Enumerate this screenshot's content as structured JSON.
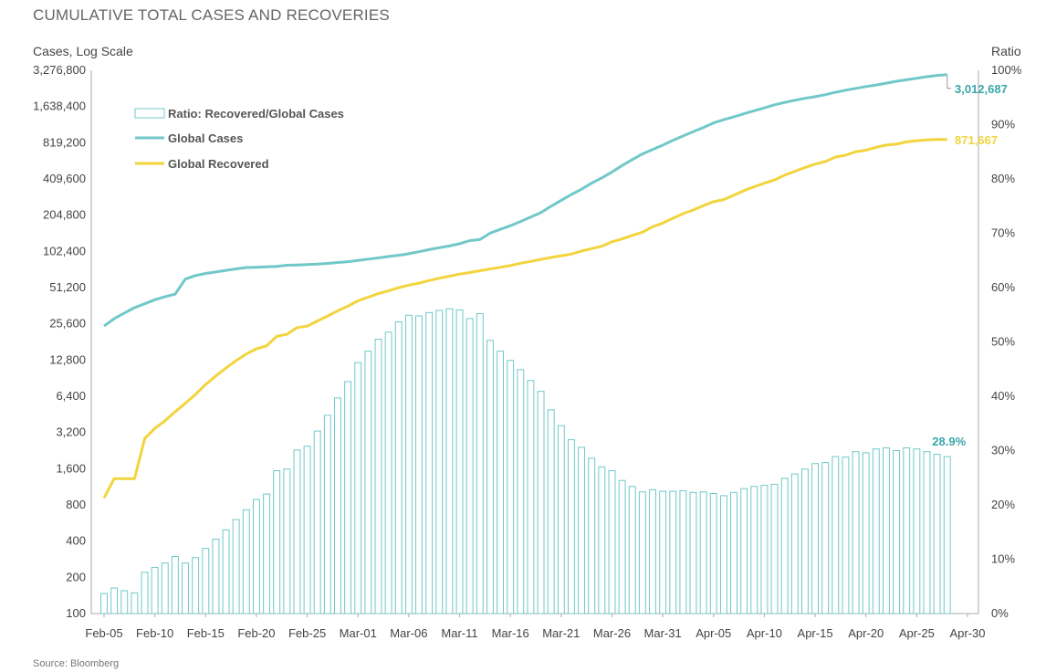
{
  "title": "CUMULATIVE TOTAL CASES AND RECOVERIES",
  "source": "Source: Bloomberg",
  "colors": {
    "cases": "#71c8c9",
    "recovered": "#f2d43d",
    "ratio_bar": "#71c8c9",
    "ratio_label": "#3aa7aa"
  },
  "chart_data": {
    "type": "line",
    "left_axis_label": "Cases, Log Scale",
    "right_axis_label": "Ratio",
    "left_scale": "log2",
    "left_ticks": [
      "100",
      "200",
      "400",
      "800",
      "1,600",
      "3,200",
      "6,400",
      "12,800",
      "25,600",
      "51,200",
      "102,400",
      "204,800",
      "409,600",
      "819,200",
      "1,638,400",
      "3,276,800"
    ],
    "left_range": [
      100,
      3276800
    ],
    "right_ticks": [
      "0%",
      "10%",
      "20%",
      "30%",
      "40%",
      "50%",
      "60%",
      "70%",
      "80%",
      "90%",
      "100%"
    ],
    "right_range": [
      0,
      100
    ],
    "x_tick_labels": [
      "Feb-05",
      "Feb-10",
      "Feb-15",
      "Feb-20",
      "Feb-25",
      "Mar-01",
      "Mar-06",
      "Mar-11",
      "Mar-16",
      "Mar-21",
      "Mar-26",
      "Mar-31",
      "Apr-05",
      "Apr-10",
      "Apr-15",
      "Apr-20",
      "Apr-25",
      "Apr-30"
    ],
    "x_start": "Feb-05",
    "x_end": "Apr-30",
    "legend": [
      "Ratio: Recovered/Global Cases",
      "Global Cases",
      "Global Recovered"
    ],
    "annotations": {
      "cases_last": "3,012,687",
      "recovered_last": "871,667",
      "ratio_last": "28.9%"
    },
    "series": [
      {
        "name": "Global Cases",
        "axis": "left",
        "start": "Feb-05",
        "values": [
          24554,
          28276,
          31481,
          34886,
          37552,
          40553,
          43099,
          45170,
          60286,
          64438,
          67092,
          69032,
          71226,
          73260,
          75138,
          75641,
          76199,
          76843,
          78599,
          78985,
          79570,
          80415,
          81397,
          82744,
          84124,
          86013,
          88371,
          90306,
          92840,
          95120,
          97886,
          101800,
          105836,
          109821,
          113590,
          118582,
          125865,
          128343,
          145193,
          156099,
          167511,
          181546,
          197168,
          214915,
          242713,
          272167,
          304507,
          336953,
          378235,
          418045,
          467653,
          529591,
          593291,
          660706,
          720117,
          782365,
          857487,
          932605,
          1013303,
          1095917,
          1197405,
          1272115,
          1345101,
          1426096,
          1511104,
          1595350,
          1691719,
          1771514,
          1846680,
          1917320,
          1976191,
          2056054,
          2152437,
          2240190,
          2317759,
          2401379,
          2472259,
          2563006,
          2656906,
          2732000,
          2813000,
          2898000,
          2971000,
          3012687
        ]
      },
      {
        "name": "Global Recovered",
        "axis": "left",
        "start": "Feb-05",
        "values": [
          913,
          1324,
          1324,
          1324,
          2846,
          3460,
          4008,
          4754,
          5582,
          6624,
          8023,
          9431,
          10976,
          12684,
          14383,
          15876,
          16788,
          20176,
          20921,
          23796,
          24496,
          27000,
          29680,
          32820,
          35915,
          39771,
          42654,
          45590,
          48102,
          51114,
          53700,
          55800,
          58600,
          61300,
          63700,
          66300,
          68300,
          70800,
          73100,
          75400,
          78100,
          81600,
          84600,
          87800,
          91100,
          94200,
          97300,
          103000,
          108000,
          113000,
          123000,
          130000,
          139000,
          148000,
          164000,
          176000,
          193000,
          211000,
          226000,
          246000,
          265000,
          276000,
          300000,
          328000,
          353000,
          377000,
          402000,
          441000,
          474000,
          510000,
          545000,
          571000,
          623000,
          645000,
          690000,
          710000,
          750000,
          783000,
          797000,
          832000,
          852000,
          865000,
          871667,
          871667
        ]
      },
      {
        "name": "Ratio: Recovered/Global Cases",
        "axis": "right",
        "type": "bar",
        "start": "Feb-05",
        "values": [
          3.7,
          4.7,
          4.2,
          3.8,
          7.6,
          8.5,
          9.3,
          10.5,
          9.3,
          10.3,
          12.0,
          13.7,
          15.4,
          17.3,
          19.1,
          21.0,
          22.0,
          26.3,
          26.6,
          30.1,
          30.8,
          33.6,
          36.5,
          39.7,
          42.7,
          46.2,
          48.3,
          50.5,
          51.8,
          53.7,
          54.9,
          54.8,
          55.4,
          55.8,
          56.1,
          55.9,
          54.3,
          55.2,
          50.3,
          48.3,
          46.6,
          44.9,
          42.9,
          40.9,
          37.5,
          34.6,
          32.0,
          30.6,
          28.6,
          27.0,
          26.3,
          24.5,
          23.4,
          22.4,
          22.8,
          22.5,
          22.5,
          22.6,
          22.3,
          22.4,
          22.1,
          21.7,
          22.3,
          23.0,
          23.4,
          23.6,
          23.8,
          24.9,
          25.7,
          26.6,
          27.6,
          27.8,
          28.9,
          28.8,
          29.8,
          29.6,
          30.3,
          30.5,
          30.0,
          30.5,
          30.3,
          29.8,
          29.3,
          28.9
        ]
      }
    ]
  }
}
